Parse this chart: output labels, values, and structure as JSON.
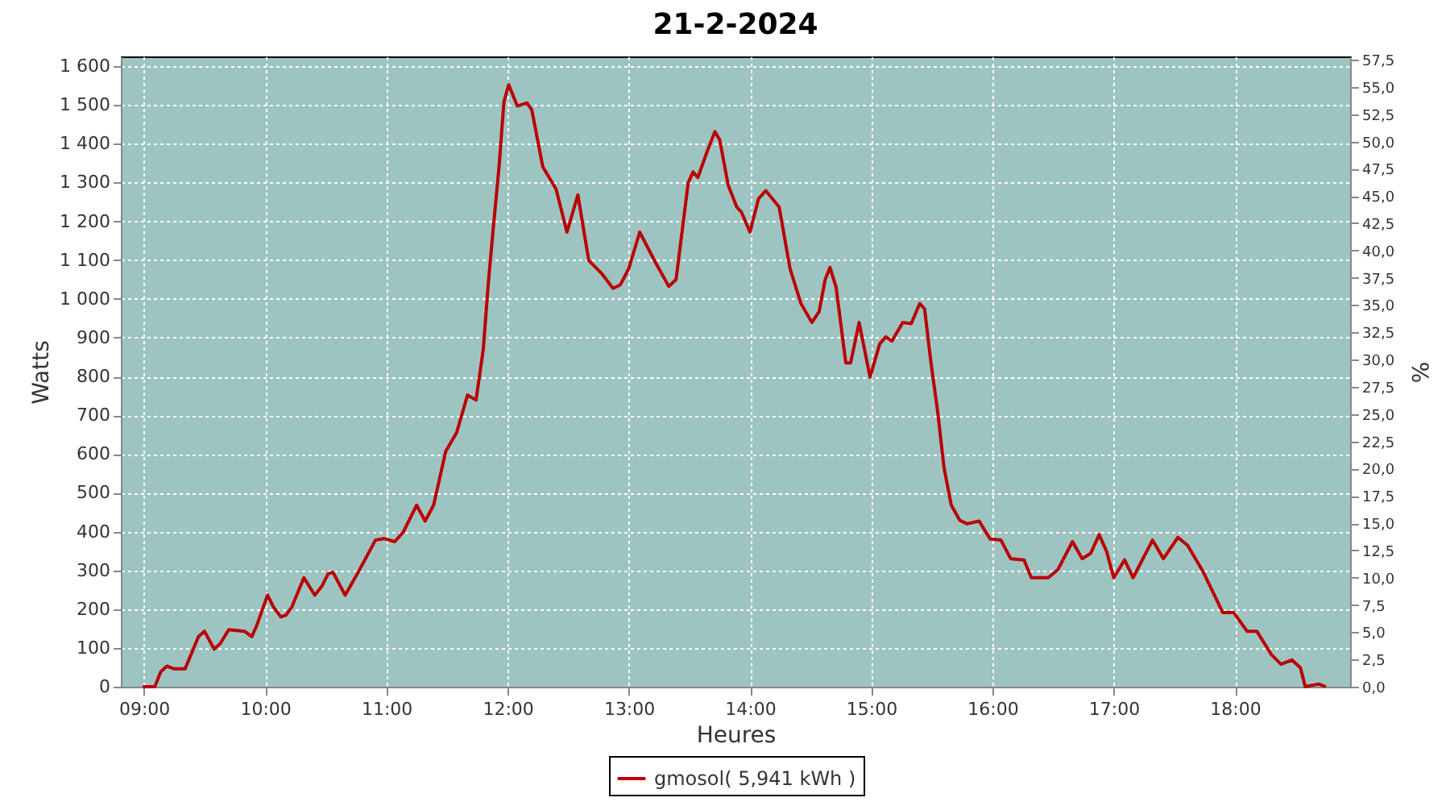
{
  "chart_data": {
    "type": "line",
    "title": "21-2-2024",
    "xlabel": "Heures",
    "ylabel": "Watts",
    "y2label": "%",
    "x": [
      8.99,
      9.09,
      9.14,
      9.19,
      9.25,
      9.34,
      9.45,
      9.5,
      9.58,
      9.63,
      9.7,
      9.83,
      9.89,
      9.93,
      10.02,
      10.07,
      10.13,
      10.17,
      10.22,
      10.32,
      10.41,
      10.47,
      10.52,
      10.56,
      10.66,
      10.78,
      10.91,
      10.98,
      11.07,
      11.14,
      11.25,
      11.32,
      11.39,
      11.49,
      11.58,
      11.67,
      11.74,
      11.8,
      11.84,
      11.88,
      11.93,
      11.97,
      12.01,
      12.08,
      12.16,
      12.2,
      12.29,
      12.4,
      12.49,
      12.58,
      12.67,
      12.78,
      12.87,
      12.93,
      13.0,
      13.09,
      13.22,
      13.33,
      13.39,
      13.49,
      13.53,
      13.57,
      13.65,
      13.71,
      13.75,
      13.82,
      13.89,
      13.93,
      14.0,
      14.07,
      14.13,
      14.24,
      14.33,
      14.42,
      14.51,
      14.57,
      14.62,
      14.66,
      14.71,
      14.79,
      14.83,
      14.9,
      14.99,
      15.07,
      15.12,
      15.17,
      15.26,
      15.33,
      15.4,
      15.44,
      15.49,
      15.55,
      15.6,
      15.66,
      15.73,
      15.79,
      15.89,
      15.98,
      16.07,
      16.15,
      16.26,
      16.32,
      16.46,
      16.54,
      16.66,
      16.74,
      16.81,
      16.88,
      16.94,
      17.0,
      17.09,
      17.16,
      17.32,
      17.41,
      17.53,
      17.61,
      17.74,
      17.9,
      17.99,
      18.1,
      18.18,
      18.3,
      18.38,
      18.47,
      18.54,
      18.58,
      18.69,
      18.75
    ],
    "series": [
      {
        "name": "gmosol( 5,941 kWh )",
        "color": "#bb0000",
        "values": [
          0,
          0,
          39,
          53,
          46,
          46,
          129,
          143,
          97,
          111,
          147,
          143,
          129,
          157,
          236,
          205,
          180,
          184,
          205,
          281,
          236,
          260,
          291,
          295,
          236,
          302,
          378,
          382,
          374,
          399,
          468,
          427,
          468,
          607,
          655,
          752,
          739,
          870,
          1036,
          1175,
          1341,
          1508,
          1552,
          1497,
          1505,
          1487,
          1341,
          1283,
          1172,
          1268,
          1099,
          1064,
          1027,
          1036,
          1078,
          1172,
          1094,
          1032,
          1050,
          1299,
          1327,
          1313,
          1383,
          1431,
          1410,
          1293,
          1237,
          1223,
          1172,
          1258,
          1279,
          1237,
          1078,
          988,
          939,
          967,
          1050,
          1081,
          1030,
          835,
          835,
          939,
          798,
          884,
          902,
          891,
          939,
          936,
          988,
          974,
          842,
          704,
          565,
          468,
          429,
          420,
          427,
          381,
          378,
          330,
          327,
          281,
          281,
          302,
          374,
          330,
          344,
          392,
          350,
          281,
          327,
          281,
          378,
          330,
          385,
          364,
          295,
          191,
          191,
          143,
          143,
          83,
          58,
          69,
          49,
          0,
          7,
          0
        ]
      }
    ],
    "xlim": [
      8.81,
      18.95
    ],
    "xticks": [
      {
        "value": 9,
        "label": "09:00"
      },
      {
        "value": 10,
        "label": "10:00"
      },
      {
        "value": 11,
        "label": "11:00"
      },
      {
        "value": 12,
        "label": "12:00"
      },
      {
        "value": 13,
        "label": "13:00"
      },
      {
        "value": 14,
        "label": "14:00"
      },
      {
        "value": 15,
        "label": "15:00"
      },
      {
        "value": 16,
        "label": "16:00"
      },
      {
        "value": 17,
        "label": "17:00"
      },
      {
        "value": 18,
        "label": "18:00"
      }
    ],
    "ylim": [
      0,
      1625
    ],
    "yticks": [
      0,
      100,
      200,
      300,
      400,
      500,
      600,
      700,
      800,
      900,
      {
        "value": 1000,
        "label": "1 000"
      },
      {
        "value": 1100,
        "label": "1 100"
      },
      {
        "value": 1200,
        "label": "1 200"
      },
      {
        "value": 1300,
        "label": "1 300"
      },
      {
        "value": 1400,
        "label": "1 400"
      },
      {
        "value": 1500,
        "label": "1 500"
      },
      {
        "value": 1600,
        "label": "1 600"
      }
    ],
    "y2lim": [
      0,
      57.8
    ],
    "y2ticks": [
      {
        "value": 0,
        "label": "0,0"
      },
      {
        "value": 2.5,
        "label": "2,5"
      },
      {
        "value": 5,
        "label": "5,0"
      },
      {
        "value": 7.5,
        "label": "7,5"
      },
      {
        "value": 10,
        "label": "10,0"
      },
      {
        "value": 12.5,
        "label": "12,5"
      },
      {
        "value": 15,
        "label": "15,0"
      },
      {
        "value": 17.5,
        "label": "17,5"
      },
      {
        "value": 20,
        "label": "20,0"
      },
      {
        "value": 22.5,
        "label": "22,5"
      },
      {
        "value": 25,
        "label": "25,0"
      },
      {
        "value": 27.5,
        "label": "27,5"
      },
      {
        "value": 30,
        "label": "30,0"
      },
      {
        "value": 32.5,
        "label": "32,5"
      },
      {
        "value": 35,
        "label": "35,0"
      },
      {
        "value": 37.5,
        "label": "37,5"
      },
      {
        "value": 40,
        "label": "40,0"
      },
      {
        "value": 42.5,
        "label": "42,5"
      },
      {
        "value": 45,
        "label": "45,0"
      },
      {
        "value": 47.5,
        "label": "47,5"
      },
      {
        "value": 50,
        "label": "50,0"
      },
      {
        "value": 52.5,
        "label": "52,5"
      },
      {
        "value": 55,
        "label": "55,0"
      },
      {
        "value": 57.5,
        "label": "57,5"
      }
    ],
    "grid": true,
    "legend": "bottom"
  }
}
